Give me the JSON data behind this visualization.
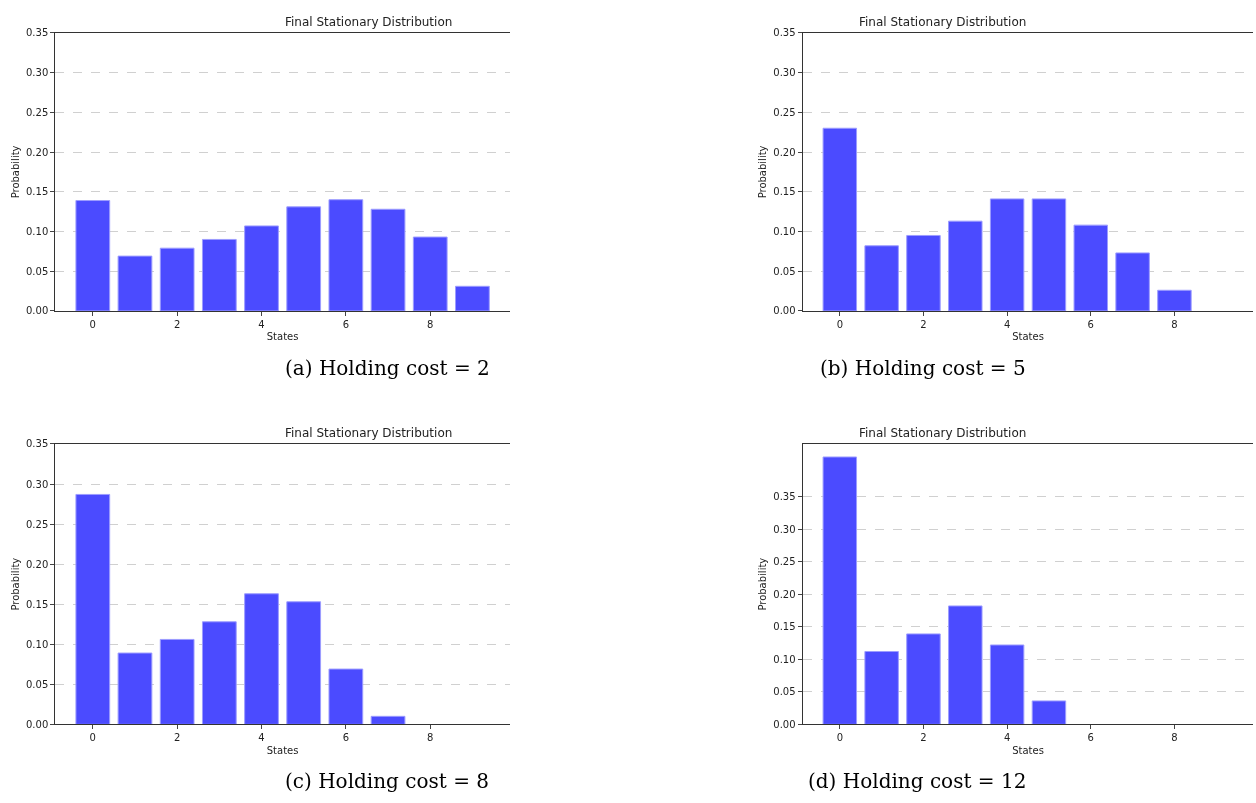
{
  "chart_data": [
    {
      "type": "bar",
      "title": "Final Stationary Distribution",
      "xlabel": "States",
      "ylabel": "Probability",
      "annotations": [
        "(a) Holding cost = 2"
      ],
      "x": [
        0,
        1,
        2,
        3,
        4,
        5,
        6,
        7,
        8,
        9
      ],
      "values": [
        0.139,
        0.069,
        0.079,
        0.09,
        0.107,
        0.131,
        0.14,
        0.128,
        0.093,
        0.031
      ],
      "color": "#4b4bff",
      "xlim": [
        -0.89,
        9.89
      ],
      "ylim": [
        0,
        0.35
      ],
      "xticks": [
        0,
        2,
        4,
        6,
        8
      ],
      "yticks": [
        {
          "value": 0,
          "label": "0.00"
        },
        {
          "value": 0.05,
          "label": "0.05"
        },
        {
          "value": 0.1,
          "label": "0.10"
        },
        {
          "value": 0.15,
          "label": "0.15"
        },
        {
          "value": 0.2,
          "label": "0.20"
        },
        {
          "value": 0.25,
          "label": "0.25"
        },
        {
          "value": 0.3,
          "label": "0.30"
        },
        {
          "value": 0.35,
          "label": "0.35"
        }
      ],
      "grid": "y",
      "line_style": "dashed"
    },
    {
      "type": "bar",
      "title": "Final Stationary Distribution",
      "xlabel": "States",
      "ylabel": "Probability",
      "annotations": [
        "(b) Holding cost = 5"
      ],
      "x": [
        0,
        1,
        2,
        3,
        4,
        5,
        6,
        7,
        8
      ],
      "values": [
        0.23,
        0.082,
        0.095,
        0.113,
        0.141,
        0.141,
        0.108,
        0.073,
        0.026
      ],
      "color": "#4b4bff",
      "xlim": [
        -0.89,
        9.89
      ],
      "ylim": [
        0,
        0.35
      ],
      "xticks": [
        0,
        2,
        4,
        6,
        8
      ],
      "yticks": [
        {
          "value": 0,
          "label": "0.00"
        },
        {
          "value": 0.05,
          "label": "0.05"
        },
        {
          "value": 0.1,
          "label": "0.10"
        },
        {
          "value": 0.15,
          "label": "0.15"
        },
        {
          "value": 0.2,
          "label": "0.20"
        },
        {
          "value": 0.25,
          "label": "0.25"
        },
        {
          "value": 0.3,
          "label": "0.30"
        },
        {
          "value": 0.35,
          "label": "0.35"
        }
      ],
      "grid": "y",
      "line_style": "dashed"
    },
    {
      "type": "bar",
      "title": "Final Stationary Distribution",
      "xlabel": "States",
      "ylabel": "Probability",
      "annotations": [
        "(c) Holding cost = 8"
      ],
      "x": [
        0,
        1,
        2,
        3,
        4,
        5,
        6,
        7
      ],
      "values": [
        0.287,
        0.089,
        0.106,
        0.128,
        0.163,
        0.153,
        0.069,
        0.01
      ],
      "color": "#4b4bff",
      "xlim": [
        -0.89,
        9.89
      ],
      "ylim": [
        0,
        0.35
      ],
      "xticks": [
        0,
        2,
        4,
        6,
        8
      ],
      "yticks": [
        {
          "value": 0,
          "label": "0.00"
        },
        {
          "value": 0.05,
          "label": "0.05"
        },
        {
          "value": 0.1,
          "label": "0.10"
        },
        {
          "value": 0.15,
          "label": "0.15"
        },
        {
          "value": 0.2,
          "label": "0.20"
        },
        {
          "value": 0.25,
          "label": "0.25"
        },
        {
          "value": 0.3,
          "label": "0.30"
        },
        {
          "value": 0.35,
          "label": "0.35"
        }
      ],
      "grid": "y",
      "line_style": "dashed"
    },
    {
      "type": "bar",
      "title": "Final Stationary Distribution",
      "xlabel": "States",
      "ylabel": "Probability",
      "annotations": [
        "(d) Holding cost = 12"
      ],
      "x": [
        0,
        1,
        2,
        3,
        4,
        5
      ],
      "values": [
        0.411,
        0.112,
        0.139,
        0.182,
        0.122,
        0.036
      ],
      "color": "#4b4bff",
      "xlim": [
        -0.89,
        9.89
      ],
      "ylim": [
        0,
        0.431
      ],
      "xticks": [
        0,
        2,
        4,
        6,
        8
      ],
      "yticks": [
        {
          "value": 0,
          "label": "0.00"
        },
        {
          "value": 0.05,
          "label": "0.05"
        },
        {
          "value": 0.1,
          "label": "0.10"
        },
        {
          "value": 0.15,
          "label": "0.15"
        },
        {
          "value": 0.2,
          "label": "0.20"
        },
        {
          "value": 0.25,
          "label": "0.25"
        },
        {
          "value": 0.3,
          "label": "0.30"
        },
        {
          "value": 0.35,
          "label": "0.35"
        }
      ],
      "grid": "y",
      "line_style": "dashed"
    }
  ]
}
